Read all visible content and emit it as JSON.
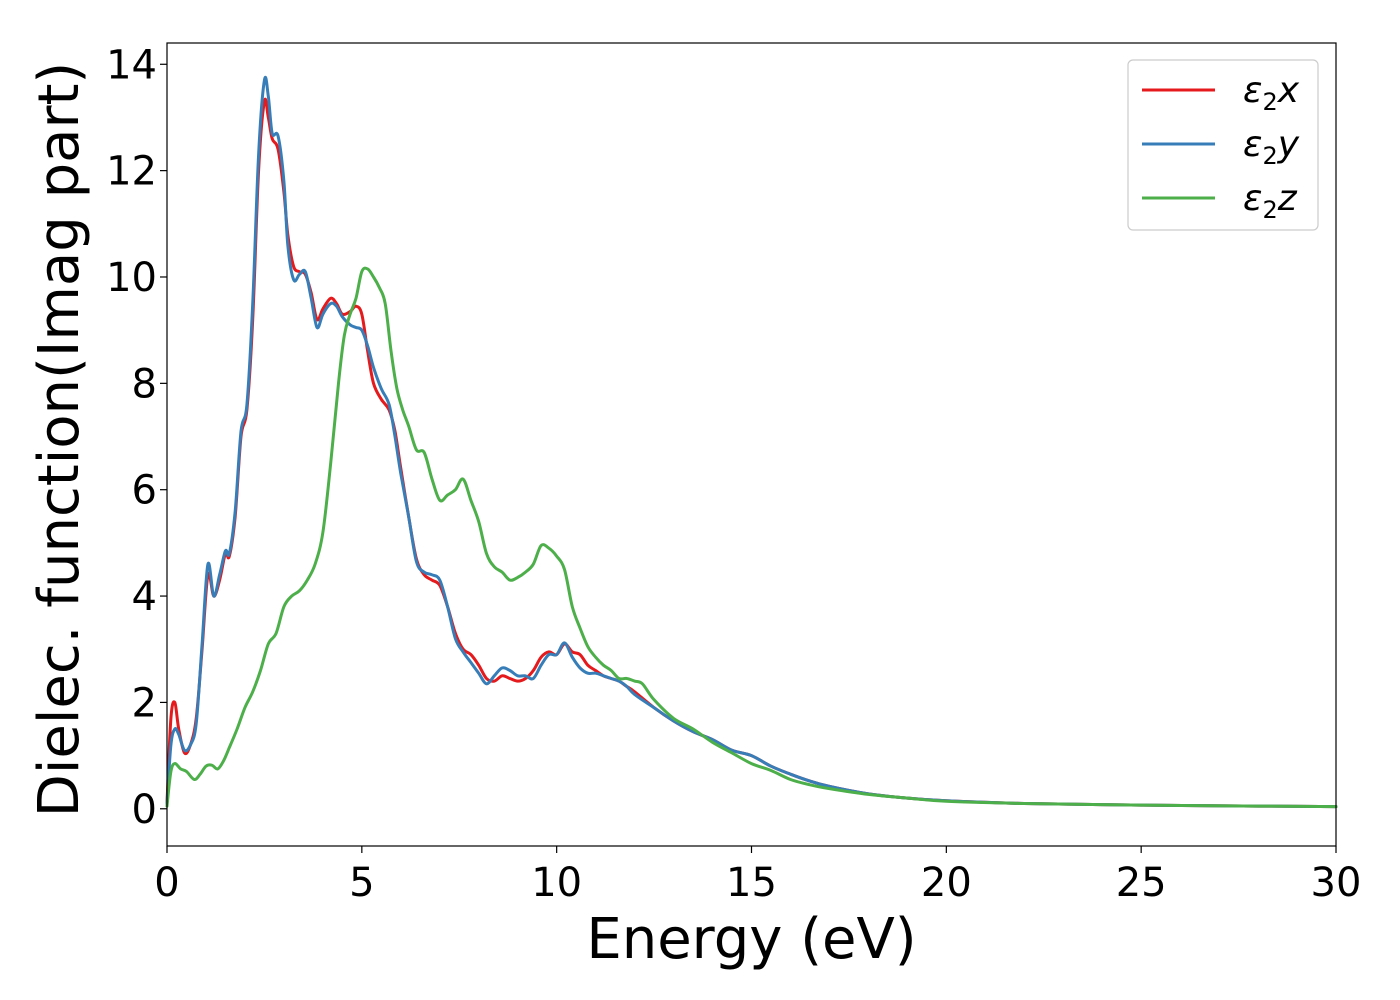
{
  "chart_data": {
    "type": "line",
    "title": "",
    "xlabel": "Energy (eV)",
    "ylabel": "Dielec. function(Imag part)",
    "xlim": [
      0,
      30
    ],
    "ylim": [
      -0.7,
      14.4
    ],
    "xticks": [
      0,
      5,
      10,
      15,
      20,
      25,
      30
    ],
    "yticks": [
      0,
      2,
      4,
      6,
      8,
      10,
      12,
      14
    ],
    "grid": false,
    "legend_position": "top-right",
    "series": [
      {
        "name": "ε₂x",
        "legend_main": "ε",
        "legend_sub": "2",
        "legend_tail": "x",
        "color": "#e41a1c",
        "x": [
          0,
          0.1,
          0.2,
          0.3,
          0.45,
          0.6,
          0.75,
          0.9,
          1.05,
          1.2,
          1.35,
          1.5,
          1.6,
          1.75,
          1.9,
          2.05,
          2.2,
          2.35,
          2.5,
          2.6,
          2.7,
          2.85,
          3.0,
          3.1,
          3.25,
          3.4,
          3.55,
          3.7,
          3.85,
          4.0,
          4.2,
          4.35,
          4.5,
          4.7,
          4.85,
          5.0,
          5.15,
          5.3,
          5.5,
          5.7,
          5.85,
          6.0,
          6.2,
          6.4,
          6.6,
          6.8,
          7.0,
          7.2,
          7.4,
          7.6,
          7.8,
          8.0,
          8.2,
          8.4,
          8.6,
          8.8,
          9.0,
          9.2,
          9.4,
          9.6,
          9.8,
          10.0,
          10.2,
          10.4,
          10.6,
          10.8,
          11.0,
          11.2,
          11.4,
          11.6,
          11.8,
          12.0,
          12.5,
          13.0,
          13.5,
          14.0,
          14.5,
          15.0,
          15.5,
          16.0,
          16.5,
          17.0,
          18.0,
          19.0,
          20.0,
          22.0,
          25.0,
          28.0,
          30.0
        ],
        "y": [
          0.1,
          1.7,
          2.0,
          1.5,
          1.05,
          1.2,
          1.7,
          3.0,
          4.4,
          4.0,
          4.3,
          4.8,
          4.75,
          5.5,
          7.0,
          7.5,
          9.2,
          12.0,
          13.3,
          13.0,
          12.6,
          12.4,
          11.6,
          10.8,
          10.2,
          10.1,
          10.05,
          9.7,
          9.2,
          9.4,
          9.6,
          9.5,
          9.3,
          9.35,
          9.45,
          9.3,
          8.6,
          8.0,
          7.7,
          7.5,
          7.1,
          6.4,
          5.5,
          4.7,
          4.4,
          4.3,
          4.2,
          3.8,
          3.3,
          3.0,
          2.9,
          2.7,
          2.45,
          2.4,
          2.5,
          2.45,
          2.4,
          2.45,
          2.6,
          2.85,
          2.95,
          2.9,
          3.1,
          2.95,
          2.9,
          2.7,
          2.6,
          2.5,
          2.45,
          2.4,
          2.3,
          2.2,
          1.9,
          1.65,
          1.45,
          1.3,
          1.1,
          1.0,
          0.8,
          0.65,
          0.52,
          0.42,
          0.28,
          0.2,
          0.15,
          0.1,
          0.07,
          0.05,
          0.04
        ]
      },
      {
        "name": "ε₂y",
        "legend_main": "ε",
        "legend_sub": "2",
        "legend_tail": "y",
        "color": "#377eb8",
        "x": [
          0,
          0.1,
          0.2,
          0.3,
          0.45,
          0.6,
          0.75,
          0.9,
          1.05,
          1.2,
          1.35,
          1.5,
          1.6,
          1.75,
          1.9,
          2.05,
          2.2,
          2.35,
          2.5,
          2.6,
          2.7,
          2.85,
          3.0,
          3.1,
          3.25,
          3.4,
          3.55,
          3.7,
          3.85,
          4.0,
          4.2,
          4.35,
          4.5,
          4.7,
          4.85,
          5.0,
          5.15,
          5.3,
          5.5,
          5.7,
          5.85,
          6.0,
          6.2,
          6.4,
          6.6,
          6.8,
          7.0,
          7.2,
          7.4,
          7.6,
          7.8,
          8.0,
          8.2,
          8.4,
          8.6,
          8.8,
          9.0,
          9.2,
          9.4,
          9.6,
          9.8,
          10.0,
          10.2,
          10.4,
          10.6,
          10.8,
          11.0,
          11.2,
          11.4,
          11.6,
          11.8,
          12.0,
          12.5,
          13.0,
          13.5,
          14.0,
          14.5,
          15.0,
          15.5,
          16.0,
          16.5,
          17.0,
          18.0,
          19.0,
          20.0,
          22.0,
          25.0,
          28.0,
          30.0
        ],
        "y": [
          0.1,
          1.2,
          1.5,
          1.4,
          1.1,
          1.2,
          1.6,
          3.1,
          4.6,
          4.0,
          4.4,
          4.85,
          4.8,
          5.6,
          7.1,
          7.6,
          9.5,
          12.3,
          13.7,
          13.4,
          12.7,
          12.65,
          11.8,
          10.6,
          9.95,
          10.05,
          10.1,
          9.6,
          9.05,
          9.3,
          9.5,
          9.45,
          9.25,
          9.1,
          9.05,
          9.0,
          8.7,
          8.3,
          7.9,
          7.6,
          7.0,
          6.3,
          5.5,
          4.65,
          4.45,
          4.4,
          4.3,
          3.8,
          3.2,
          2.95,
          2.75,
          2.55,
          2.35,
          2.5,
          2.65,
          2.6,
          2.5,
          2.5,
          2.45,
          2.7,
          2.9,
          2.9,
          3.12,
          2.85,
          2.65,
          2.55,
          2.55,
          2.5,
          2.45,
          2.4,
          2.3,
          2.15,
          1.9,
          1.65,
          1.45,
          1.3,
          1.1,
          1.0,
          0.8,
          0.65,
          0.52,
          0.42,
          0.28,
          0.2,
          0.15,
          0.1,
          0.07,
          0.05,
          0.04
        ]
      },
      {
        "name": "ε₂z",
        "legend_main": "ε",
        "legend_sub": "2",
        "legend_tail": "z",
        "color": "#4daf4a",
        "x": [
          0,
          0.1,
          0.2,
          0.35,
          0.5,
          0.7,
          0.85,
          1.0,
          1.15,
          1.3,
          1.45,
          1.6,
          1.8,
          2.0,
          2.2,
          2.4,
          2.6,
          2.8,
          3.0,
          3.2,
          3.4,
          3.6,
          3.8,
          4.0,
          4.2,
          4.4,
          4.55,
          4.7,
          4.85,
          5.0,
          5.15,
          5.3,
          5.45,
          5.6,
          5.75,
          5.9,
          6.05,
          6.2,
          6.4,
          6.6,
          6.8,
          7.0,
          7.2,
          7.4,
          7.6,
          7.8,
          8.0,
          8.2,
          8.4,
          8.6,
          8.8,
          9.0,
          9.2,
          9.4,
          9.6,
          9.8,
          10.0,
          10.2,
          10.4,
          10.6,
          10.8,
          11.0,
          11.2,
          11.4,
          11.6,
          11.8,
          12.0,
          12.2,
          12.5,
          13.0,
          13.5,
          14.0,
          14.5,
          15.0,
          15.5,
          16.0,
          16.5,
          17.0,
          18.0,
          19.0,
          20.0,
          22.0,
          25.0,
          28.0,
          30.0
        ],
        "y": [
          0.05,
          0.7,
          0.85,
          0.75,
          0.7,
          0.55,
          0.65,
          0.8,
          0.82,
          0.75,
          0.9,
          1.15,
          1.5,
          1.9,
          2.2,
          2.6,
          3.1,
          3.3,
          3.8,
          4.0,
          4.1,
          4.3,
          4.6,
          5.2,
          6.5,
          8.0,
          8.9,
          9.3,
          9.6,
          10.1,
          10.15,
          10.0,
          9.8,
          9.5,
          8.6,
          7.9,
          7.5,
          7.2,
          6.75,
          6.7,
          6.2,
          5.8,
          5.9,
          6.0,
          6.2,
          5.8,
          5.4,
          4.8,
          4.55,
          4.45,
          4.3,
          4.35,
          4.45,
          4.6,
          4.95,
          4.9,
          4.75,
          4.5,
          3.8,
          3.4,
          3.05,
          2.85,
          2.7,
          2.6,
          2.45,
          2.45,
          2.4,
          2.35,
          2.05,
          1.7,
          1.5,
          1.25,
          1.05,
          0.85,
          0.72,
          0.55,
          0.45,
          0.38,
          0.27,
          0.2,
          0.14,
          0.1,
          0.07,
          0.05,
          0.04
        ]
      }
    ]
  }
}
